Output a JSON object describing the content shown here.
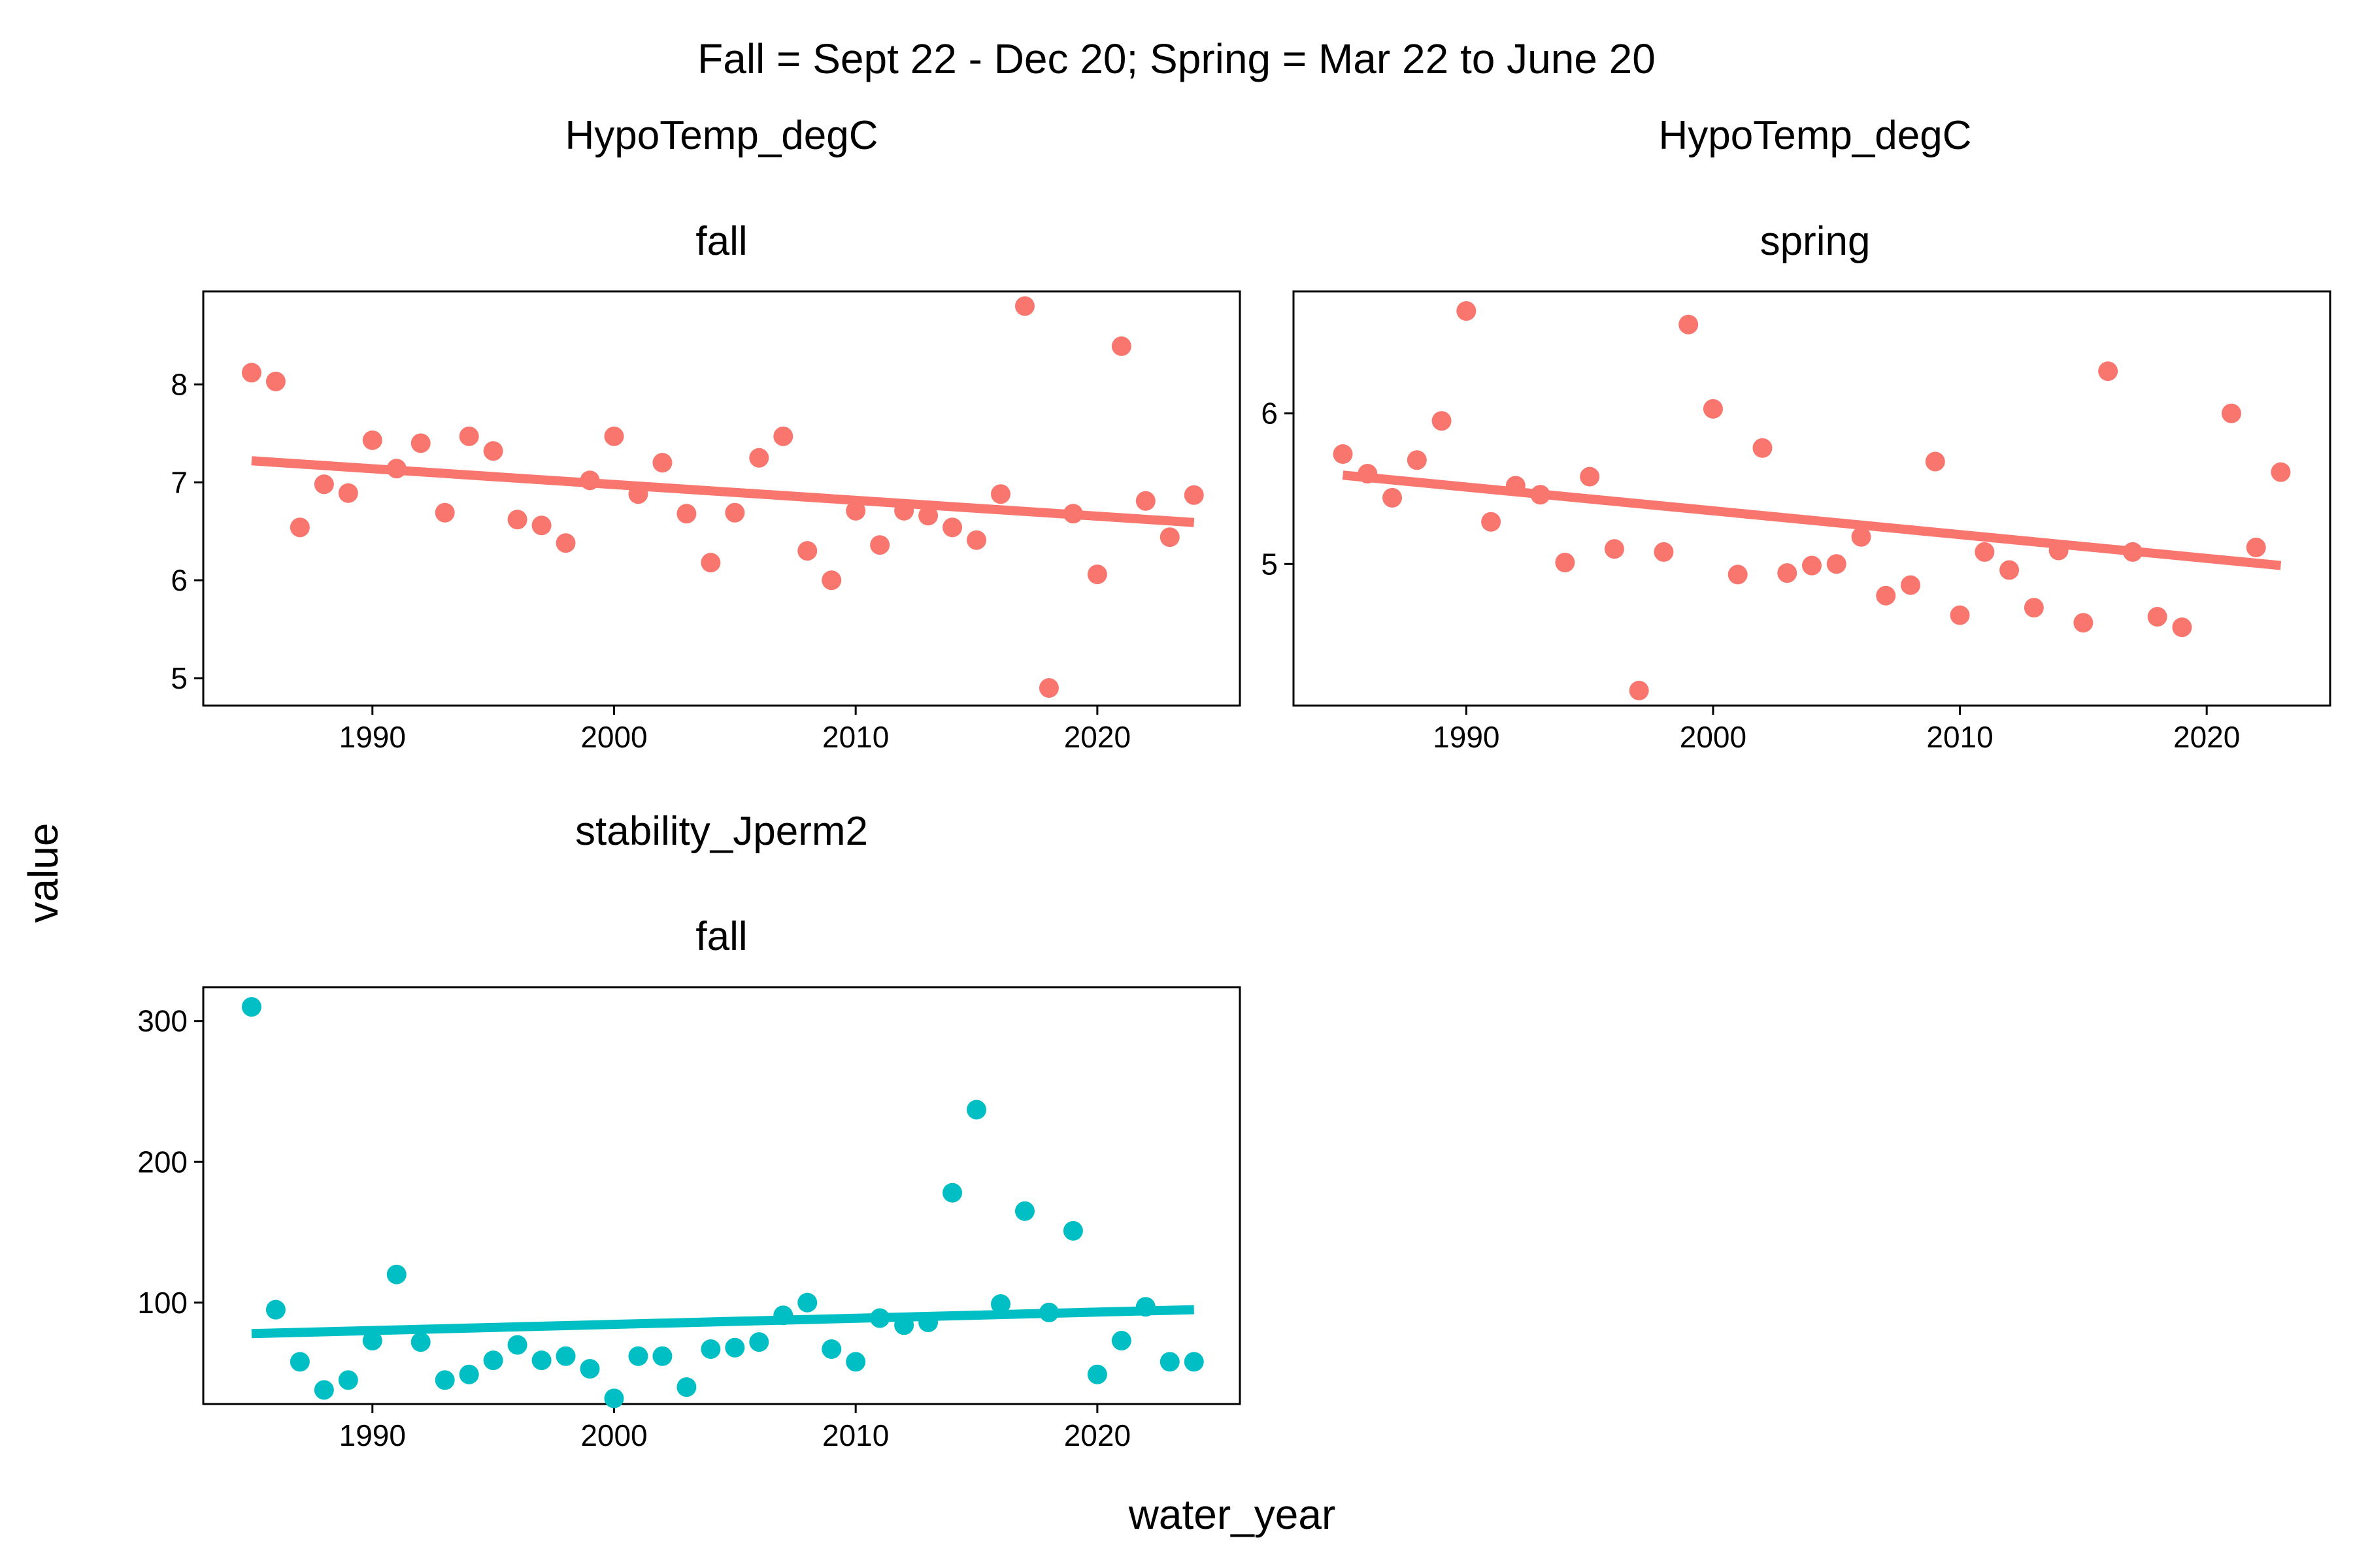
{
  "figure": {
    "title": "Fall = Sept 22 - Dec 20; Spring = Mar 22 to June 20",
    "xlabel": "water_year",
    "ylabel": "value"
  },
  "colors": {
    "hypotemp": "#F8766D",
    "stability": "#00BFC4",
    "frame": "#000000",
    "background": "#FFFFFF"
  },
  "chart_data": [
    {
      "type": "scatter",
      "panel": "top-left",
      "variable": "HypoTemp_degC",
      "season": "fall",
      "x_ticks": [
        1990,
        2000,
        2010,
        2020
      ],
      "y_ticks": [
        5,
        6,
        7,
        8
      ],
      "xlim": [
        1983.0,
        2025.9
      ],
      "ylim": [
        4.72,
        8.95
      ],
      "grid": false,
      "series": [
        {
          "x": [
            1985,
            1986,
            1987,
            1988,
            1989,
            1990,
            1991,
            1992,
            1993,
            1994,
            1995,
            1996,
            1997,
            1998,
            1999,
            2000,
            2001,
            2002,
            2003,
            2004,
            2005,
            2006,
            2007,
            2008,
            2009,
            2010,
            2011,
            2012,
            2013,
            2014,
            2015,
            2016,
            2017,
            2018,
            2019,
            2020,
            2021,
            2022,
            2023,
            2024
          ],
          "y": [
            8.12,
            8.03,
            6.54,
            6.98,
            6.89,
            7.43,
            7.14,
            7.4,
            6.69,
            7.47,
            7.32,
            6.62,
            6.56,
            6.38,
            7.02,
            7.47,
            6.88,
            7.2,
            6.68,
            6.18,
            6.69,
            7.25,
            7.47,
            6.3,
            6.0,
            6.71,
            6.36,
            6.71,
            6.66,
            6.54,
            6.41,
            6.88,
            8.8,
            4.9,
            6.68,
            6.06,
            8.39,
            6.81,
            6.44,
            6.87
          ]
        }
      ],
      "trend": {
        "x": [
          1985,
          2024
        ],
        "y": [
          7.22,
          6.59
        ]
      }
    },
    {
      "type": "scatter",
      "panel": "top-right",
      "variable": "HypoTemp_degC",
      "season": "spring",
      "x_ticks": [
        1990,
        2000,
        2010,
        2020
      ],
      "y_ticks": [
        5,
        6
      ],
      "xlim": [
        1983.0,
        2025.0
      ],
      "ylim": [
        4.06,
        6.81
      ],
      "grid": false,
      "series": [
        {
          "x": [
            1985,
            1986,
            1987,
            1988,
            1989,
            1990,
            1991,
            1992,
            1993,
            1994,
            1995,
            1996,
            1997,
            1998,
            1999,
            2000,
            2001,
            2002,
            2003,
            2004,
            2005,
            2006,
            2007,
            2008,
            2009,
            2010,
            2011,
            2012,
            2013,
            2014,
            2015,
            2016,
            2017,
            2018,
            2019,
            2021,
            2022,
            2023
          ],
          "y": [
            5.73,
            5.6,
            5.44,
            5.69,
            5.95,
            6.68,
            5.28,
            5.52,
            5.46,
            5.01,
            5.58,
            5.1,
            4.16,
            5.08,
            6.59,
            6.03,
            4.93,
            5.77,
            4.94,
            4.99,
            5.0,
            5.18,
            4.79,
            4.86,
            5.68,
            4.66,
            5.08,
            4.96,
            4.71,
            5.09,
            4.61,
            6.28,
            5.08,
            4.65,
            4.58,
            6.0,
            5.11,
            5.61
          ]
        }
      ],
      "trend": {
        "x": [
          1985,
          2023
        ],
        "y": [
          5.59,
          4.99
        ]
      }
    },
    {
      "type": "scatter",
      "panel": "bottom-left",
      "variable": "stability_Jperm2",
      "season": "fall",
      "x_ticks": [
        1990,
        2000,
        2010,
        2020
      ],
      "y_ticks": [
        100,
        200,
        300
      ],
      "xlim": [
        1983.0,
        2025.9
      ],
      "ylim": [
        28,
        324
      ],
      "grid": false,
      "series": [
        {
          "x": [
            1985,
            1986,
            1987,
            1988,
            1989,
            1990,
            1991,
            1992,
            1993,
            1994,
            1995,
            1996,
            1997,
            1998,
            1999,
            2000,
            2001,
            2002,
            2003,
            2004,
            2005,
            2006,
            2007,
            2008,
            2009,
            2010,
            2011,
            2012,
            2013,
            2014,
            2015,
            2016,
            2017,
            2018,
            2019,
            2020,
            2021,
            2022,
            2023,
            2024
          ],
          "y": [
            310,
            95,
            58,
            38,
            45,
            73,
            120,
            72,
            45,
            49,
            59,
            70,
            59,
            62,
            53,
            32,
            62,
            62,
            40,
            67,
            68,
            72,
            91,
            100,
            67,
            58,
            89,
            84,
            86,
            178,
            237,
            99,
            165,
            93,
            151,
            49,
            73,
            97,
            58,
            58
          ]
        }
      ],
      "trend": {
        "x": [
          1985,
          2024
        ],
        "y": [
          78,
          95
        ]
      }
    }
  ]
}
